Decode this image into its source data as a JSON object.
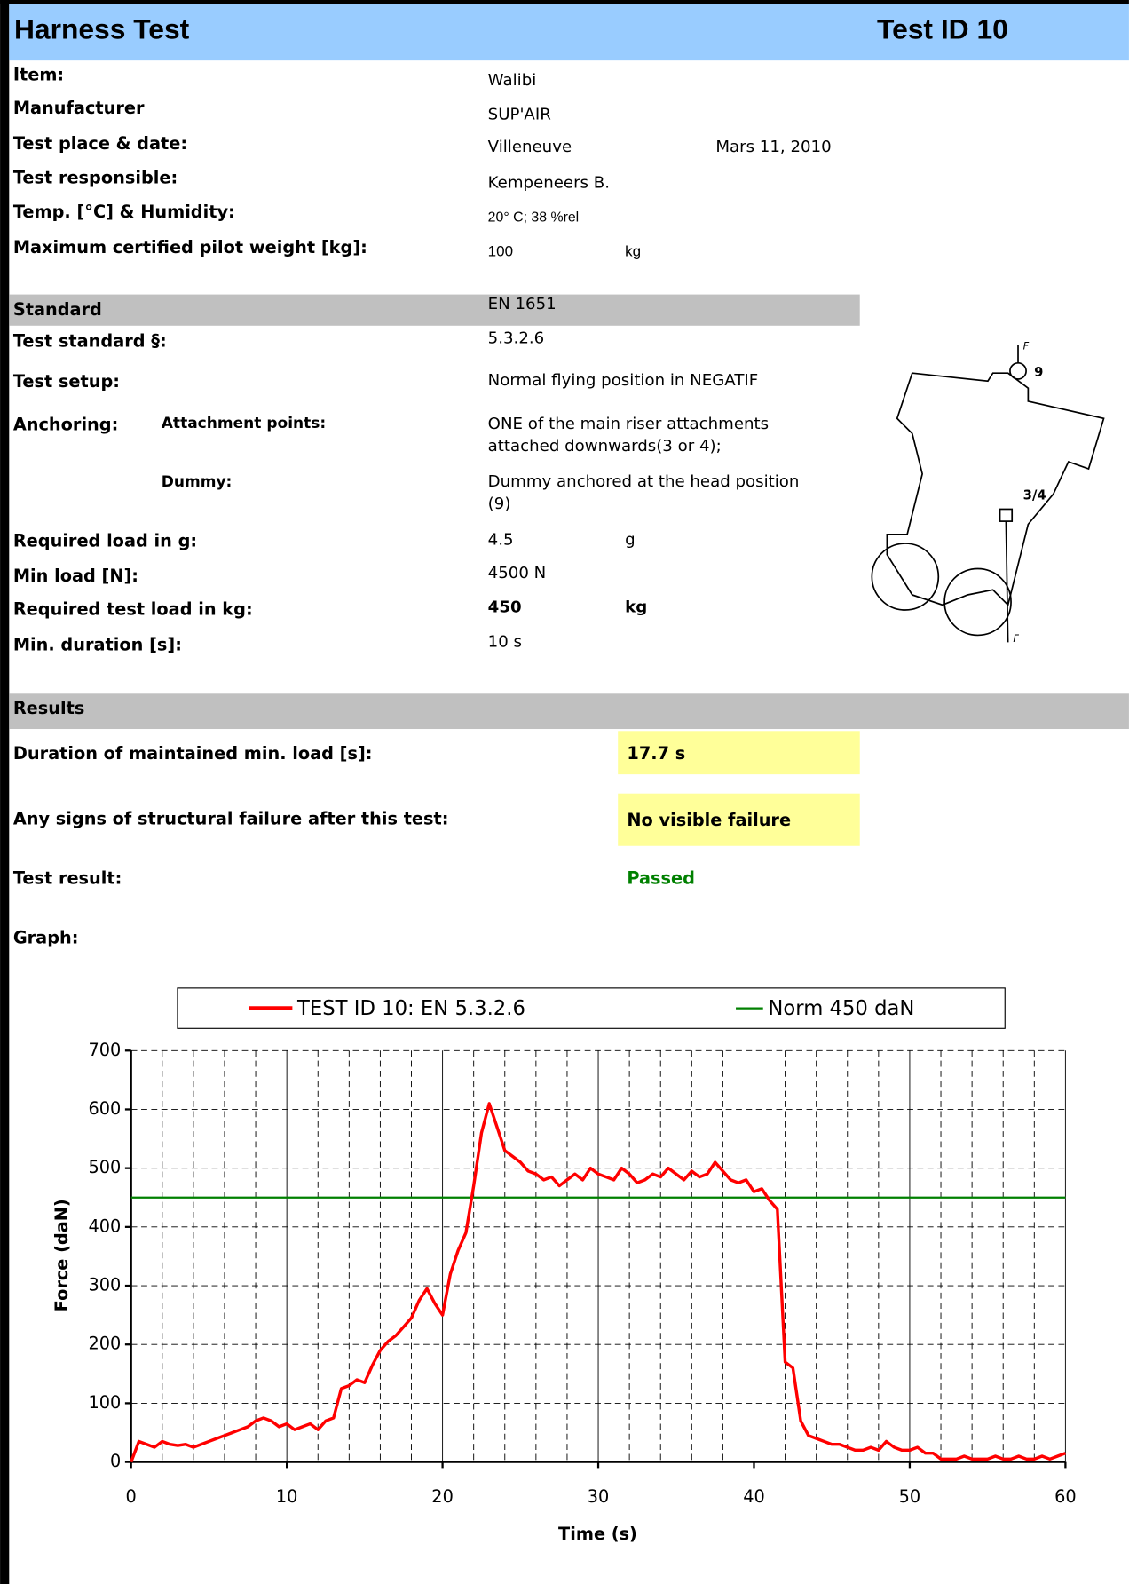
{
  "header": {
    "title": "Harness Test",
    "test_id": "Test ID 10"
  },
  "fields": [
    {
      "label": "Item:",
      "value": "Walibi"
    },
    {
      "label": "Manufacturer",
      "value": "SUP'AIR"
    },
    {
      "label": "Test place & date:",
      "value": "Villeneuve",
      "extra": "Mars 11, 2010"
    },
    {
      "label": "Test responsible:",
      "value": "Kempeneers B."
    },
    {
      "label": "Temp. [°C] & Humidity:",
      "value": "20° C; 38 %rel"
    },
    {
      "label": "Maximum certified pilot weight [kg]:",
      "value": "100",
      "extra": "kg"
    }
  ],
  "standard": {
    "label": "Standard",
    "value": "EN 1651"
  },
  "test": {
    "test_standard": {
      "label": "Test standard §:",
      "value": "5.3.2.6"
    },
    "test_setup": {
      "label": "Test setup:",
      "value": "Normal flying position in NEGATIF"
    },
    "anchoring": {
      "label": "Anchoring:",
      "sublabel": "Attachment points:",
      "value": [
        "ONE of the main riser attachments",
        "attached downwards(3 or 4);"
      ]
    },
    "dummy": {
      "sublabel": "Dummy:",
      "value": [
        "Dummy anchored at the head position",
        "(9)"
      ]
    },
    "required_load_g": {
      "label": "Required load in g:",
      "value": "4.5",
      "extra": "g"
    },
    "min_load": {
      "label": "Min load [N]:",
      "value": "4500 N"
    },
    "required_test_load": {
      "label": "Required test load in kg:",
      "value": "450",
      "extra": "kg"
    },
    "min_duration": {
      "label": "Min. duration [s]:",
      "value": "10 s"
    }
  },
  "diagram": {
    "labels": [
      "9",
      "3/4",
      "F",
      "F"
    ]
  },
  "results": {
    "header": "Results",
    "duration": {
      "label": "Duration of maintained min. load [s]:",
      "value": "17.7 s"
    },
    "failure": {
      "label": "Any signs of structural failure after this test:",
      "value": "No visible failure"
    },
    "result": {
      "label": "Test result:",
      "value": "Passed"
    },
    "graph": {
      "label": "Graph:"
    }
  },
  "chart_data": {
    "type": "line",
    "x_label": "Time (s)",
    "y_label": "Force (daN)",
    "xlim": [
      0,
      60
    ],
    "ylim": [
      0,
      700
    ],
    "xticks": [
      0,
      10,
      20,
      30,
      40,
      50,
      60
    ],
    "x_minor_ticks": [
      2,
      4,
      6,
      8,
      12,
      14,
      16,
      18,
      22,
      24,
      26,
      28,
      32,
      34,
      36,
      38,
      42,
      44,
      46,
      48,
      52,
      54,
      56,
      58
    ],
    "yticks": [
      0,
      100,
      200,
      300,
      400,
      500,
      600,
      700
    ],
    "grid": true,
    "legend": "top",
    "series": [
      {
        "name": "TEST ID 10: EN 5.3.2.6",
        "color": "#ff0000",
        "x": [
          0,
          0.5,
          1,
          1.5,
          2,
          2.5,
          3,
          3.5,
          4,
          4.5,
          5,
          5.5,
          6,
          6.5,
          7,
          7.5,
          8,
          8.5,
          9,
          9.5,
          10,
          10.5,
          11,
          11.5,
          12,
          12.5,
          13,
          13.5,
          14,
          14.5,
          15,
          15.5,
          16,
          16.5,
          17,
          17.5,
          18,
          18.5,
          19,
          19.5,
          20,
          20.5,
          21,
          21.5,
          22,
          22.5,
          23,
          23.5,
          24,
          24.5,
          25,
          25.5,
          26,
          26.5,
          27,
          27.5,
          28,
          28.5,
          29,
          29.5,
          30,
          30.5,
          31,
          31.5,
          32,
          32.5,
          33,
          33.5,
          34,
          34.5,
          35,
          35.5,
          36,
          36.5,
          37,
          37.5,
          38,
          38.5,
          39,
          39.5,
          40,
          40.5,
          41,
          41.5,
          42,
          42.5,
          43,
          43.5,
          44,
          44.5,
          45,
          45.5,
          46,
          46.5,
          47,
          47.5,
          48,
          48.5,
          49,
          49.5,
          50,
          50.5,
          51,
          51.5,
          52,
          52.5,
          53,
          53.5,
          54,
          54.5,
          55,
          55.5,
          56,
          56.5,
          57,
          57.5,
          58,
          58.5,
          59,
          59.5,
          60
        ],
        "values": [
          0,
          35,
          30,
          25,
          35,
          30,
          28,
          30,
          25,
          30,
          35,
          40,
          45,
          50,
          55,
          60,
          70,
          75,
          70,
          60,
          65,
          55,
          60,
          65,
          55,
          70,
          75,
          125,
          130,
          140,
          135,
          165,
          190,
          205,
          215,
          230,
          245,
          275,
          295,
          270,
          250,
          320,
          360,
          390,
          470,
          560,
          610,
          570,
          530,
          520,
          510,
          495,
          490,
          480,
          485,
          470,
          480,
          490,
          480,
          500,
          490,
          485,
          480,
          500,
          490,
          475,
          480,
          490,
          485,
          500,
          490,
          480,
          495,
          485,
          490,
          510,
          495,
          480,
          475,
          480,
          460,
          465,
          445,
          430,
          170,
          160,
          70,
          45,
          40,
          35,
          30,
          30,
          25,
          20,
          20,
          25,
          20,
          35,
          25,
          20,
          20,
          25,
          15,
          15,
          5,
          5,
          5,
          10,
          5,
          5,
          5,
          10,
          5,
          5,
          10,
          5,
          5,
          10,
          5,
          10,
          15
        ]
      },
      {
        "name": "Norm 450 daN",
        "color": "#008000",
        "x": [
          0,
          60
        ],
        "values": [
          450,
          450
        ]
      }
    ]
  }
}
